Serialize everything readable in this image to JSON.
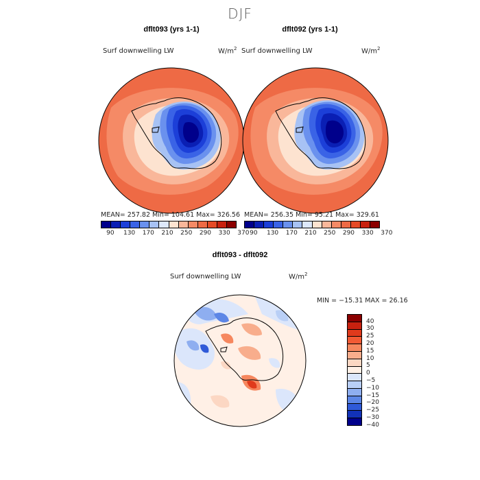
{
  "title": "DJF",
  "panels": [
    {
      "title": "dflt093 (yrs 1-1)",
      "variable": "Surf downwelling LW",
      "units_base": "W/m",
      "units_exp": "2",
      "stats": "MEAN= 257.82   Min= 104.61   Max= 326.56"
    },
    {
      "title": "dflt092 (yrs 1-1)",
      "variable": "Surf downwelling LW",
      "units_base": "W/m",
      "units_exp": "2",
      "stats": "MEAN= 256.35   Min=  95.21   Max= 329.61"
    }
  ],
  "colorbar_top": {
    "colors": [
      "#00008b",
      "#0a1fb4",
      "#1c3fd8",
      "#3a63e6",
      "#6a91ee",
      "#a7c2f4",
      "#dde8fb",
      "#fde3d0",
      "#f9b79a",
      "#f58a66",
      "#ee6a45",
      "#e54a26",
      "#c8210f",
      "#8b0000"
    ],
    "ticks": [
      "90",
      "130",
      "170",
      "210",
      "250",
      "290",
      "330",
      "370"
    ]
  },
  "difference": {
    "title": "dflt093 - dflt092",
    "variable": "Surf downwelling LW",
    "units_base": "W/m",
    "units_exp": "2",
    "minmax": "MIN = −15.31  MAX =  26.16",
    "colorbar": {
      "colors": [
        "#8b0000",
        "#c8210f",
        "#e03a1c",
        "#f25a34",
        "#f6875e",
        "#f8ad8c",
        "#fcd7c3",
        "#fff0e6",
        "#dbe6fb",
        "#b9cff6",
        "#8eaef0",
        "#5c86e6",
        "#2f5ad8",
        "#1232b8",
        "#00008b"
      ],
      "ticks": [
        "40",
        "30",
        "25",
        "20",
        "15",
        "10",
        "5",
        "0",
        "−5",
        "−10",
        "−15",
        "−20",
        "−25",
        "−30",
        "−40"
      ]
    }
  }
}
